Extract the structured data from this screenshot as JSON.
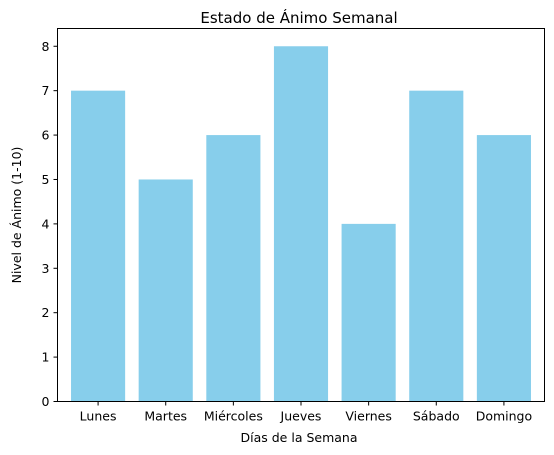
{
  "chart_data": {
    "type": "bar",
    "title": "Estado de Ánimo Semanal",
    "xlabel": "Días de la Semana",
    "ylabel": "Nivel de Ánimo (1-10)",
    "categories": [
      "Lunes",
      "Martes",
      "Miércoles",
      "Jueves",
      "Viernes",
      "Sábado",
      "Domingo"
    ],
    "values": [
      7,
      5,
      6,
      8,
      4,
      7,
      6
    ],
    "ylim": [
      0,
      8.4
    ],
    "yticks": [
      0,
      1,
      2,
      3,
      4,
      5,
      6,
      7,
      8
    ],
    "bar_color": "#87ceeb",
    "grid": false,
    "legend": "none"
  }
}
